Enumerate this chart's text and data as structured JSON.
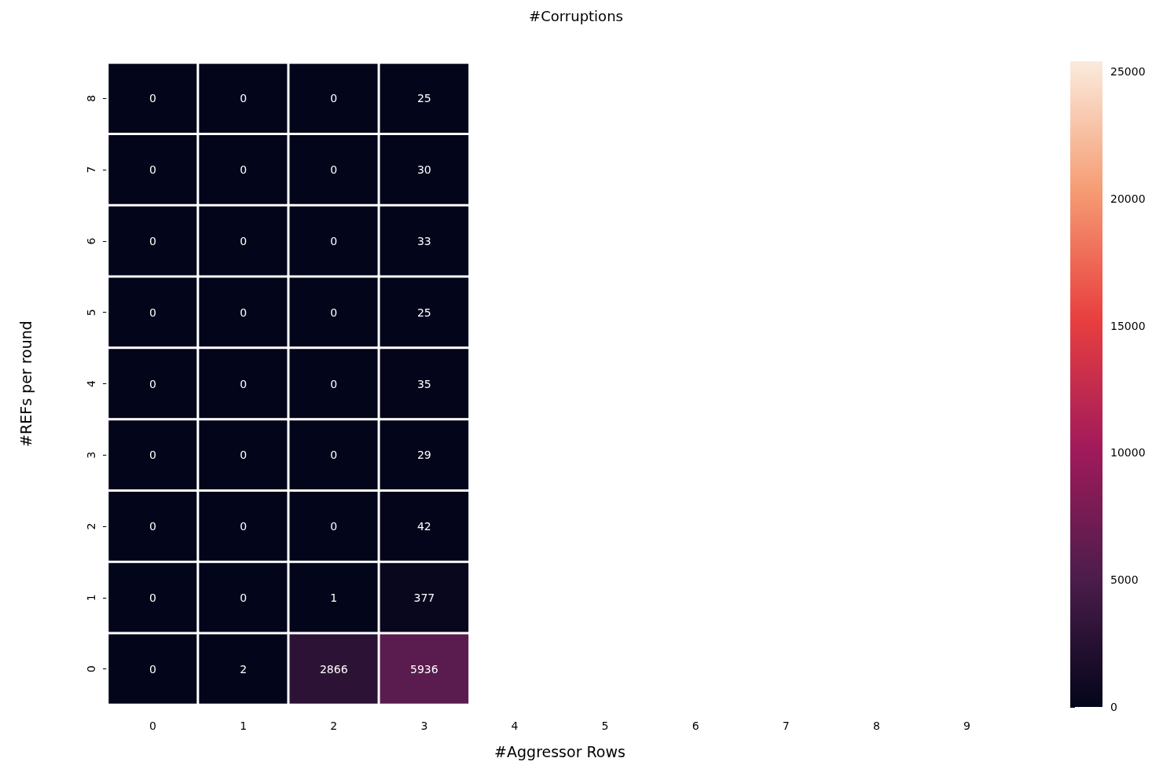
{
  "chart_data": {
    "type": "heatmap",
    "title": "#Corruptions",
    "xlabel": "#Aggressor Rows",
    "ylabel": "#REFs per round",
    "categories": [
      "0",
      "1",
      "2",
      "3",
      "4",
      "5",
      "6",
      "7",
      "8",
      "9"
    ],
    "y_categories": [
      "8",
      "7",
      "6",
      "5",
      "4",
      "3",
      "2",
      "1",
      "0"
    ],
    "cells": [
      [
        0,
        0,
        0,
        25,
        null,
        null,
        null,
        null,
        null,
        null
      ],
      [
        0,
        0,
        0,
        30,
        null,
        null,
        null,
        null,
        null,
        null
      ],
      [
        0,
        0,
        0,
        33,
        null,
        null,
        null,
        null,
        null,
        null
      ],
      [
        0,
        0,
        0,
        25,
        null,
        null,
        null,
        null,
        null,
        null
      ],
      [
        0,
        0,
        0,
        35,
        null,
        null,
        null,
        null,
        null,
        null
      ],
      [
        0,
        0,
        0,
        29,
        null,
        null,
        null,
        null,
        null,
        null
      ],
      [
        0,
        0,
        0,
        42,
        null,
        null,
        null,
        null,
        null,
        null
      ],
      [
        0,
        0,
        1,
        377,
        null,
        null,
        null,
        null,
        null,
        null
      ],
      [
        0,
        2,
        2866,
        5936,
        null,
        null,
        null,
        null,
        null,
        null
      ]
    ],
    "data_labels": true,
    "clim": [
      0,
      25400
    ],
    "cticks": [
      0,
      5000,
      10000,
      15000,
      20000,
      25000
    ]
  }
}
